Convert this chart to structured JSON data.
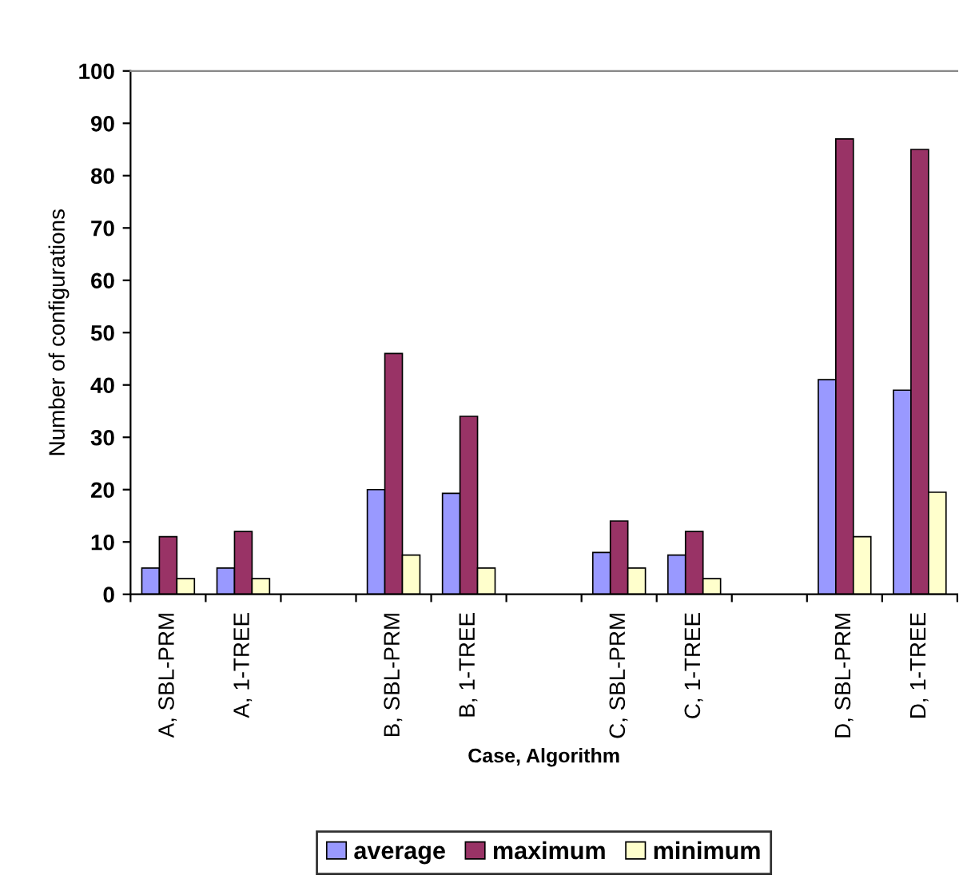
{
  "chart_data": {
    "type": "bar",
    "xlabel": "Case, Algorithm",
    "ylabel": "Number of configurations",
    "categories": [
      "A, SBL-PRM",
      "A, 1-TREE",
      null,
      "B, SBL-PRM",
      "B, 1-TREE",
      null,
      "C, SBL-PRM",
      "C, 1-TREE",
      null,
      "D, SBL-PRM",
      "D, 1-TREE"
    ],
    "series": [
      {
        "name": "average",
        "color": "#9999ff",
        "values": [
          5,
          5,
          null,
          20,
          19.3,
          null,
          8,
          7.5,
          null,
          41,
          39
        ]
      },
      {
        "name": "maximum",
        "color": "#993366",
        "values": [
          11,
          12,
          null,
          46,
          34,
          null,
          14,
          12,
          null,
          87,
          85
        ]
      },
      {
        "name": "minimum",
        "color": "#ffffcc",
        "values": [
          3,
          3,
          null,
          7.5,
          5,
          null,
          5,
          3,
          null,
          11,
          19.5
        ]
      }
    ],
    "ylim": [
      0,
      100
    ],
    "yticks": [
      0,
      10,
      20,
      30,
      40,
      50,
      60,
      70,
      80,
      90,
      100
    ],
    "grid": false,
    "legend": "bottom"
  }
}
